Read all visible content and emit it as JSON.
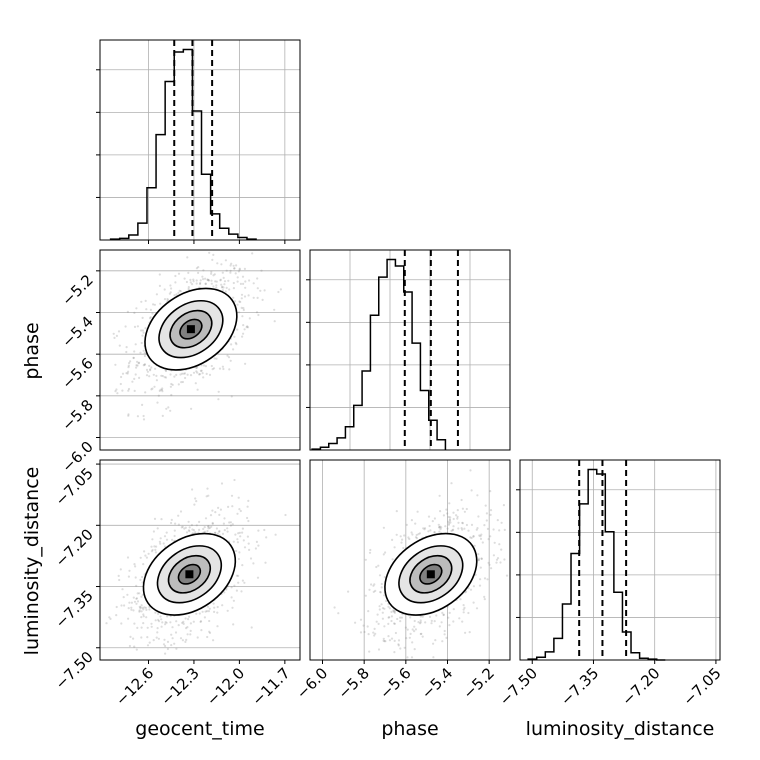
{
  "chart_data": [
    {
      "type": "histogram",
      "parameter": "geocent_time",
      "xlabel": "geocent_time",
      "xlim": [
        -12.92,
        -11.6
      ],
      "xticks": [
        "−12.6",
        "−12.3",
        "−12.0",
        "−11.7"
      ],
      "xtick_values": [
        -12.6,
        -12.3,
        -12.0,
        -11.7
      ],
      "yticks_count": 4,
      "grid": true,
      "bin_edges_start": -12.85,
      "bin_width": 0.06,
      "counts": [
        1,
        2,
        6,
        20,
        62,
        125,
        188,
        223,
        226,
        153,
        78,
        31,
        14,
        7,
        3,
        1
      ],
      "quantile_lines": [
        -12.43,
        -12.31,
        -12.18
      ]
    },
    {
      "type": "scatter_density",
      "x_parameter": "geocent_time",
      "y_parameter": "phase",
      "ylabel": "phase",
      "xlim": [
        -12.92,
        -11.6
      ],
      "ylim": [
        -6.06,
        -5.1
      ],
      "yticks": [
        "−5.2",
        "−5.4",
        "−5.6",
        "−5.8",
        "−6.0"
      ],
      "ytick_values": [
        -5.2,
        -5.4,
        -5.6,
        -5.8,
        -6.0
      ],
      "grid": true,
      "center": [
        -12.32,
        -5.48
      ]
    },
    {
      "type": "histogram",
      "parameter": "phase",
      "xlim": [
        -6.06,
        -5.1
      ],
      "grid": true,
      "bin_edges_start": -6.05,
      "bin_width": 0.04,
      "counts": [
        1,
        3,
        7,
        13,
        25,
        48,
        85,
        145,
        186,
        205,
        198,
        170,
        115,
        64,
        32,
        11
      ],
      "quantile_lines": [
        -5.605,
        -5.48,
        -5.35
      ]
    },
    {
      "type": "scatter_density",
      "x_parameter": "geocent_time",
      "y_parameter": "luminosity_distance",
      "ylabel": "luminosity_distance",
      "xlim": [
        -12.92,
        -11.6
      ],
      "ylim": [
        -7.53,
        -7.04
      ],
      "yticks": [
        "−7.05",
        "−7.20",
        "−7.35",
        "−7.50"
      ],
      "ytick_values": [
        -7.05,
        -7.2,
        -7.35,
        -7.5
      ],
      "xticks": [
        "−12.6",
        "−12.3",
        "−12.0",
        "−11.7"
      ],
      "grid": true,
      "center": [
        -12.33,
        -7.32
      ]
    },
    {
      "type": "scatter_density",
      "x_parameter": "phase",
      "y_parameter": "luminosity_distance",
      "xlabel": "phase",
      "xlim": [
        -6.06,
        -5.1
      ],
      "ylim": [
        -7.53,
        -7.04
      ],
      "xticks": [
        "−6.0",
        "−5.8",
        "−5.6",
        "−5.4",
        "−5.2"
      ],
      "xtick_values": [
        -6.0,
        -5.8,
        -5.6,
        -5.4,
        -5.2
      ],
      "grid": true,
      "center": [
        -5.48,
        -7.32
      ]
    },
    {
      "type": "histogram",
      "parameter": "luminosity_distance",
      "xlabel": "luminosity_distance",
      "xlim": [
        -7.53,
        -7.04
      ],
      "xticks": [
        "−7.50",
        "−7.35",
        "−7.20",
        "−7.05"
      ],
      "xtick_values": [
        -7.5,
        -7.35,
        -7.2,
        -7.05
      ],
      "grid": true,
      "bin_edges_start": -7.51,
      "bin_width": 0.021,
      "counts": [
        1,
        3,
        9,
        24,
        62,
        118,
        173,
        211,
        206,
        142,
        75,
        31,
        8,
        2,
        1,
        0
      ],
      "quantile_lines": [
        -7.385,
        -7.328,
        -7.27
      ]
    }
  ],
  "labels": {
    "x_bottom_left": "geocent_time",
    "x_bottom_middle": "phase",
    "x_bottom_right": "luminosity_distance",
    "y_middle": "phase",
    "y_bottom": "luminosity_distance"
  },
  "colors": {
    "line": "#000000",
    "grid": "#b0b0b0",
    "scatter": "#777777"
  }
}
